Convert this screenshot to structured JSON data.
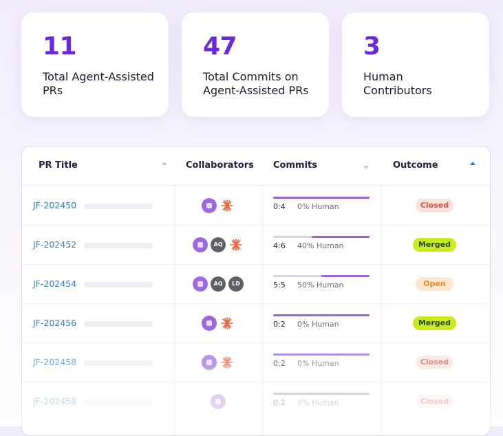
{
  "stats": [
    {
      "value": "11",
      "label": "Total Agent-Assisted PRs"
    },
    {
      "value": "47",
      "label": "Total Commits on Agent-Assisted PRs"
    },
    {
      "value": "3",
      "label": "Human Contributors"
    }
  ],
  "table": {
    "headers": {
      "pr_title": "PR Title",
      "collaborators": "Collaborators",
      "commits": "Commits",
      "outcome": "Outcome"
    },
    "sort_active_color": "#2f7fd0",
    "rows": [
      {
        "pr": "JF-202450",
        "avatars": [
          "agent-icon",
          "burst-icon"
        ],
        "ratio": "0:4",
        "human": "0% Human",
        "human_fraction": 0.0,
        "outcome": "Closed",
        "opacity": 1
      },
      {
        "pr": "JF-202452",
        "avatars": [
          "agent-icon",
          "AQ",
          "burst-icon"
        ],
        "ratio": "4:6",
        "human": "40% Human",
        "human_fraction": 0.4,
        "outcome": "Merged",
        "opacity": 1
      },
      {
        "pr": "JF-202454",
        "avatars": [
          "agent-icon",
          "AQ",
          "LD"
        ],
        "ratio": "5:5",
        "human": "50% Human",
        "human_fraction": 0.5,
        "outcome": "Open",
        "opacity": 1
      },
      {
        "pr": "JF-202456",
        "avatars": [
          "agent-icon",
          "burst-icon"
        ],
        "ratio": "0:2",
        "human": "0% Human",
        "human_fraction": 0.0,
        "outcome": "Merged",
        "opacity": 1
      },
      {
        "pr": "JF-202458",
        "avatars": [
          "agent-icon",
          "burst-icon"
        ],
        "ratio": "0:2",
        "human": "0% Human",
        "human_fraction": 0.0,
        "outcome": "Closed",
        "opacity": 0.7
      },
      {
        "pr": "JF-202458",
        "avatars": [
          "agent-icon"
        ],
        "ratio": "0:2",
        "human": "0% Human",
        "human_fraction": 0.0,
        "outcome": "Closed",
        "opacity": 0.45
      }
    ]
  },
  "colors": {
    "accent": "#6a2be0",
    "link": "#2f7fd0",
    "agent_avatar": "#9b6ae0",
    "burst": "#e8653a"
  }
}
